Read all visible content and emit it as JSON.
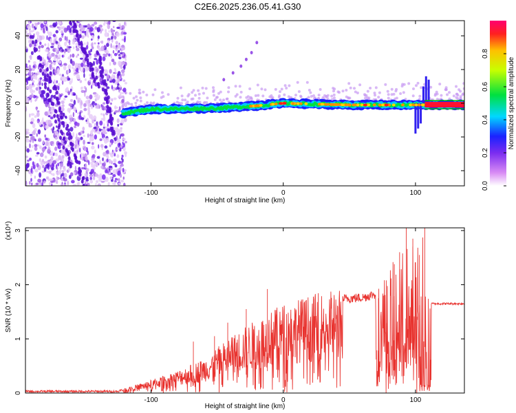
{
  "title": "C2E6.2025.236.05.41.G30",
  "chart_data": [
    {
      "type": "heatmap",
      "title": "C2E6.2025.236.05.41.G30",
      "xlabel": "Height of straight line (km)",
      "ylabel": "Frequency (Hz)",
      "xlim": [
        -195,
        137
      ],
      "ylim": [
        -49,
        49
      ],
      "xticks": [
        -100,
        0,
        100
      ],
      "xtick_labels": [
        "-100",
        "0",
        "100"
      ],
      "yticks": [
        -40,
        -20,
        0,
        20,
        40
      ],
      "ytick_labels": [
        "-40",
        "-20",
        "0",
        "20",
        "40"
      ],
      "colorbar": {
        "label": "Normalized spectral amplitude",
        "range": [
          0,
          1
        ],
        "ticks": [
          0.0,
          0.2,
          0.4,
          0.6,
          0.8
        ],
        "tick_labels": [
          "0.0",
          "0.2",
          "0.4",
          "0.6",
          "0.8"
        ]
      },
      "main_band": {
        "start_x": -122,
        "end_x": 137,
        "centerline": [
          [
            -122,
            -6
          ],
          [
            -100,
            -3.5
          ],
          [
            -50,
            -3
          ],
          [
            -20,
            -1.5
          ],
          [
            0,
            0
          ],
          [
            50,
            -1
          ],
          [
            100,
            -1
          ],
          [
            137,
            -1
          ]
        ],
        "strongest_from_x": 107
      }
    },
    {
      "type": "line",
      "xlabel": "Height of straight line (km)",
      "ylabel": "SNR (10 * v/v)",
      "y_multiplier": "(x10⁴)",
      "xlim": [
        -195,
        137
      ],
      "ylim": [
        0,
        3.05
      ],
      "xticks": [
        -100,
        0,
        100
      ],
      "xtick_labels": [
        "-100",
        "0",
        "100"
      ],
      "yticks": [
        0,
        1,
        2,
        3
      ],
      "ytick_labels": [
        "0",
        "1",
        "2",
        "3"
      ],
      "color": "#e8322e",
      "envelope": [
        [
          -195,
          0.03
        ],
        [
          -125,
          0.03
        ],
        [
          -120,
          0.08
        ],
        [
          -100,
          0.22
        ],
        [
          -80,
          0.38
        ],
        [
          -60,
          0.58
        ],
        [
          -40,
          0.95
        ],
        [
          -20,
          1.25
        ],
        [
          0,
          1.5
        ],
        [
          20,
          1.65
        ],
        [
          40,
          1.75
        ],
        [
          60,
          1.78
        ],
        [
          70,
          1.85
        ],
        [
          80,
          2.2
        ],
        [
          90,
          2.55
        ],
        [
          100,
          2.7
        ],
        [
          108,
          2.85
        ],
        [
          112,
          1.65
        ],
        [
          137,
          1.65
        ]
      ],
      "peaks": [
        [
          -68,
          0.95
        ],
        [
          -52,
          1.05
        ],
        [
          -42,
          1.3
        ],
        [
          -28,
          1.55
        ],
        [
          -12,
          1.92
        ],
        [
          -5,
          1.45
        ],
        [
          72,
          1.75
        ],
        [
          78,
          2.08
        ],
        [
          84,
          2.38
        ],
        [
          88,
          2.6
        ],
        [
          93,
          3.05
        ],
        [
          98,
          2.85
        ],
        [
          103,
          2.55
        ],
        [
          107,
          3.05
        ]
      ]
    }
  ]
}
